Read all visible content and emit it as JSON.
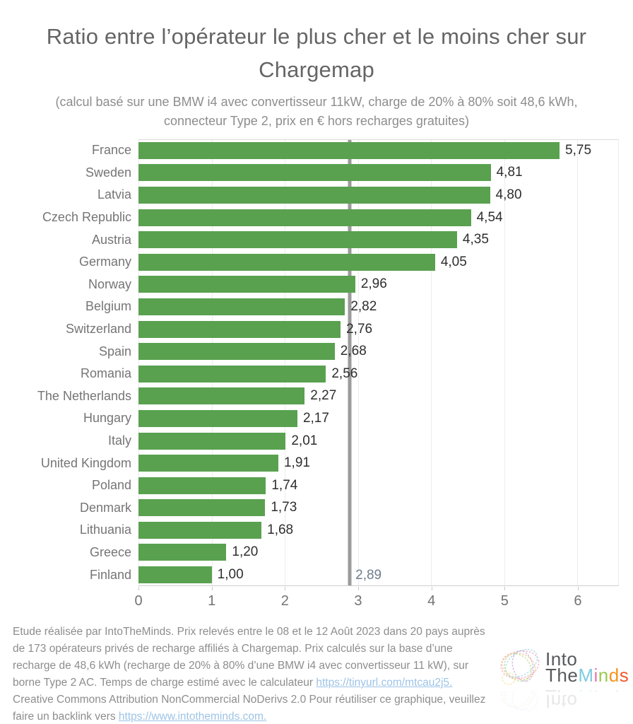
{
  "title": "Ratio entre l’opérateur le plus cher et le moins cher sur Chargemap",
  "subtitle": "(calcul basé sur une BMW i4 avec convertisseur 11kW, charge de 20% à 80% soit 48,6 kWh, connecteur Type 2, prix en € hors recharges gratuites)",
  "chart_data": {
    "type": "bar",
    "orientation": "horizontal",
    "categories": [
      "France",
      "Sweden",
      "Latvia",
      "Czech Republic",
      "Austria",
      "Germany",
      "Norway",
      "Belgium",
      "Switzerland",
      "Spain",
      "Romania",
      "The Netherlands",
      "Hungary",
      "Italy",
      "United Kingdom",
      "Poland",
      "Denmark",
      "Lithuania",
      "Greece",
      "Finland"
    ],
    "values": [
      5.75,
      4.81,
      4.8,
      4.54,
      4.35,
      4.05,
      2.96,
      2.82,
      2.76,
      2.68,
      2.56,
      2.27,
      2.17,
      2.01,
      1.91,
      1.74,
      1.73,
      1.68,
      1.2,
      1.0
    ],
    "value_labels": [
      "5,75",
      "4,81",
      "4,80",
      "4,54",
      "4,35",
      "4,05",
      "2,96",
      "2,82",
      "2,76",
      "2,68",
      "2,56",
      "2,27",
      "2,17",
      "2,01",
      "1,91",
      "1,74",
      "1,73",
      "1,68",
      "1,20",
      "1,00"
    ],
    "reference_line": {
      "value": 2.89,
      "label": "2,89"
    },
    "x_ticks": [
      "0",
      "1",
      "2",
      "3",
      "4",
      "5",
      "6"
    ],
    "xlim": [
      0,
      6.56
    ],
    "grid": true,
    "legend": "none",
    "bar_color": "#59a14f",
    "reference_line_color": "#9b9b9b"
  },
  "footer": {
    "segments": [
      {
        "type": "text",
        "text": "Etude réalisée par IntoTheMinds. Prix relevés entre le 08 et le 12 Août 2023 dans 20 pays auprès de 173 opérateurs privés de recharge affiliés à Chargemap. Prix calculés sur la base d’une recharge de 48,6 kWh (recharge de 20% à 80% d’une BMW i4 avec convertisseur 11 kW), sur borne Type 2 AC. Temps de charge estimé avec le calculateur "
      },
      {
        "type": "link",
        "text": "https://tinyurl.com/mtcau2j5."
      },
      {
        "type": "text",
        "text": " Creative Commons Attribution NonCommercial NoDerivs 2.0 Pour réutiliser ce graphique, veuillez faire un backlink vers "
      },
      {
        "type": "link",
        "text": "https://www.intotheminds.com."
      }
    ]
  },
  "logo": {
    "line1": "Into",
    "line2_dark": "The",
    "minds_letters": [
      {
        "ch": "M",
        "color": "#7ecbdf"
      },
      {
        "ch": "i",
        "color": "#f171ab"
      },
      {
        "ch": "n",
        "color": "#97ca50"
      },
      {
        "ch": "d",
        "color": "#f7941d"
      },
      {
        "ch": "s",
        "color": "#f0592b"
      }
    ],
    "brain_icon_colors": [
      "#f1a7c7",
      "#f9c08a",
      "#9fd8e8",
      "#b5d98b",
      "#c9a8d8",
      "#f4e39a"
    ]
  }
}
